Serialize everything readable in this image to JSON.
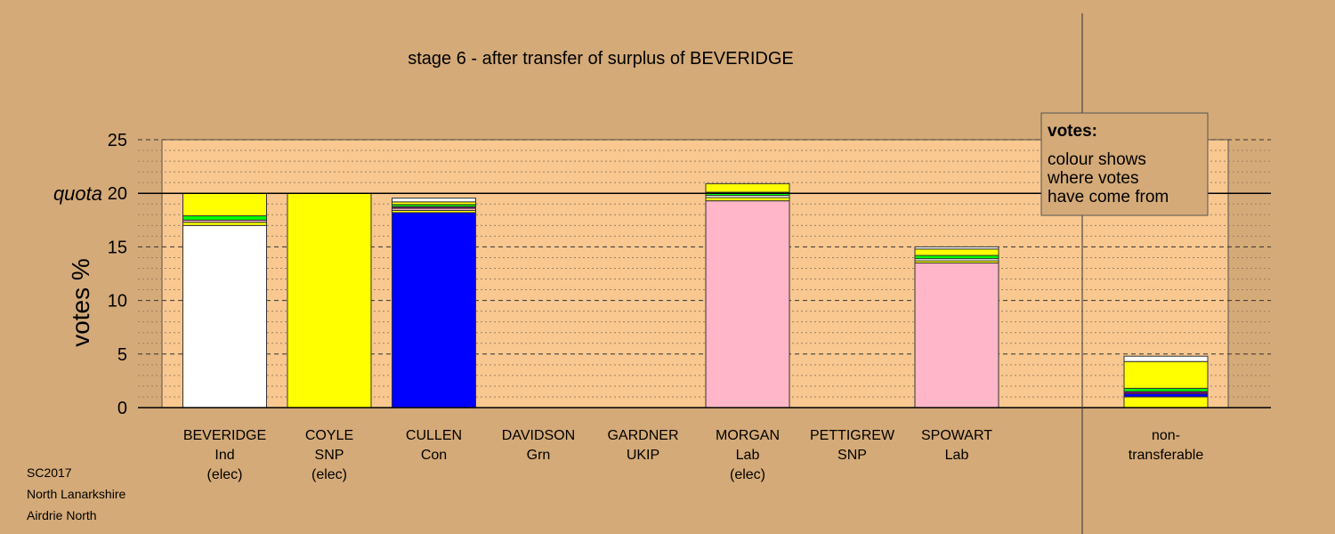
{
  "chart_data": {
    "type": "bar",
    "title": "stage 6 - after transfer of surplus of BEVERIDGE",
    "ylabel": "votes %",
    "ylim": [
      0,
      25
    ],
    "yticks": [
      0,
      5,
      10,
      15,
      20,
      25
    ],
    "quota": 20,
    "quota_label": "quota",
    "categories": [
      {
        "name": "BEVERIDGE",
        "party": "Ind",
        "status": "(elec)"
      },
      {
        "name": "COYLE",
        "party": "SNP",
        "status": "(elec)"
      },
      {
        "name": "CULLEN",
        "party": "Con",
        "status": ""
      },
      {
        "name": "DAVIDSON",
        "party": "Grn",
        "status": ""
      },
      {
        "name": "GARDNER",
        "party": "UKIP",
        "status": ""
      },
      {
        "name": "MORGAN",
        "party": "Lab",
        "status": "(elec)"
      },
      {
        "name": "PETTIGREW",
        "party": "SNP",
        "status": ""
      },
      {
        "name": "SPOWART",
        "party": "Lab",
        "status": ""
      }
    ],
    "nontransferable_label": [
      "non-",
      "transferable"
    ],
    "stacks": [
      [
        {
          "value": 17.0,
          "color": "#ffffff"
        },
        {
          "value": 0.3,
          "color": "#ffff00"
        },
        {
          "value": 0.2,
          "color": "#ffb6c8"
        },
        {
          "value": 0.4,
          "color": "#00ff00"
        },
        {
          "value": 2.1,
          "color": "#ffff00"
        }
      ],
      [
        {
          "value": 20.0,
          "color": "#ffff00"
        }
      ],
      [
        {
          "value": 18.2,
          "color": "#0000ff"
        },
        {
          "value": 0.2,
          "color": "#ffff00"
        },
        {
          "value": 0.2,
          "color": "#ffb6c8"
        },
        {
          "value": 0.15,
          "color": "#800080"
        },
        {
          "value": 0.2,
          "color": "#00ff00"
        },
        {
          "value": 0.25,
          "color": "#ffff00"
        },
        {
          "value": 0.35,
          "color": "#ffffff"
        }
      ],
      [
        {
          "value": 0.0,
          "color": "#00ff00"
        }
      ],
      [
        {
          "value": 0.0,
          "color": "#800080"
        }
      ],
      [
        {
          "value": 19.3,
          "color": "#ffb6c8"
        },
        {
          "value": 0.3,
          "color": "#ffff00"
        },
        {
          "value": 0.2,
          "color": "#ffffff"
        },
        {
          "value": 0.3,
          "color": "#00ff00"
        },
        {
          "value": 0.8,
          "color": "#ffff00"
        }
      ],
      [
        {
          "value": 0.0,
          "color": "#ffff00"
        }
      ],
      [
        {
          "value": 13.5,
          "color": "#ffb6c8"
        },
        {
          "value": 0.2,
          "color": "#ffff00"
        },
        {
          "value": 0.2,
          "color": "#ffffff"
        },
        {
          "value": 0.3,
          "color": "#00ff00"
        },
        {
          "value": 0.6,
          "color": "#ffff00"
        },
        {
          "value": 0.2,
          "color": "#ffffff"
        }
      ]
    ],
    "nontransferable_stack": [
      {
        "value": 1.0,
        "color": "#ffff00"
      },
      {
        "value": 0.3,
        "color": "#0000ff"
      },
      {
        "value": 0.2,
        "color": "#800080"
      },
      {
        "value": 0.3,
        "color": "#00ff00"
      },
      {
        "value": 2.5,
        "color": "#ffff00"
      },
      {
        "value": 0.5,
        "color": "#ffffff"
      }
    ],
    "legend": {
      "title": "votes:",
      "lines": [
        "colour shows",
        "where votes",
        "have come from"
      ]
    },
    "footer": [
      "SC2017",
      "North Lanarkshire",
      "Airdrie North"
    ]
  },
  "colors": {
    "background": "#d4aa78",
    "plot_area": "#f8c890",
    "legend_box": "#d4aa78"
  }
}
